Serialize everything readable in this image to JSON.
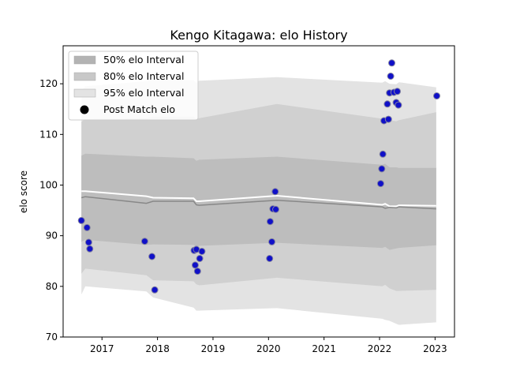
{
  "chart_data": {
    "type": "scatter",
    "title": "Kengo Kitagawa: elo History",
    "xlabel": "",
    "ylabel": "elo score",
    "xlim": [
      2016.3,
      2023.35
    ],
    "ylim": [
      70,
      127.5
    ],
    "x_ticks": [
      2017,
      2018,
      2019,
      2020,
      2021,
      2022,
      2023
    ],
    "y_ticks": [
      70,
      80,
      90,
      100,
      110,
      120
    ],
    "legend_position": "top-left",
    "grid": false,
    "legend": [
      {
        "label": "50% elo Interval",
        "kind": "band",
        "color": "#b3b3b3"
      },
      {
        "label": "80% elo Interval",
        "kind": "band",
        "color": "#c8c8c8"
      },
      {
        "label": "95% elo Interval",
        "kind": "band",
        "color": "#e3e3e3"
      },
      {
        "label": "Post Match elo",
        "kind": "marker",
        "color": "#000000"
      }
    ],
    "colors": {
      "band95": "#e3e3e3",
      "band80": "#d0d0d0",
      "band50": "#bdbdbd",
      "mean_line": "#ffffff",
      "median_line": "#888888",
      "marker_fill": "#1010c8",
      "marker_edge": "#8080a0"
    },
    "bands": {
      "x": [
        2016.63,
        2016.7,
        2017.8,
        2017.92,
        2018.65,
        2018.7,
        2018.75,
        2020.15,
        2022.05,
        2022.1,
        2022.18,
        2022.3,
        2022.35,
        2023.02
      ],
      "upper95": [
        118.5,
        119.5,
        120.5,
        120.7,
        120.7,
        120.2,
        120.6,
        121.3,
        120.2,
        120.5,
        120.0,
        119.9,
        120.3,
        119.3
      ],
      "upper80": [
        112.5,
        113.0,
        113.2,
        113.5,
        113.5,
        113.0,
        113.2,
        116.0,
        113.1,
        113.3,
        112.8,
        112.6,
        112.8,
        114.4
      ],
      "upper50": [
        105.8,
        106.2,
        105.6,
        105.6,
        105.3,
        104.8,
        105.0,
        105.6,
        104.0,
        104.2,
        103.5,
        103.5,
        103.4,
        103.4
      ],
      "lower50": [
        88.8,
        89.2,
        88.2,
        88.3,
        88.2,
        87.8,
        88.0,
        88.6,
        87.6,
        87.8,
        87.2,
        87.5,
        87.6,
        88.1
      ],
      "lower80": [
        82.5,
        83.5,
        82.2,
        81.2,
        81.0,
        80.4,
        80.2,
        81.7,
        80.0,
        80.3,
        79.6,
        79.1,
        79.1,
        79.3
      ],
      "lower95": [
        78.4,
        80.0,
        79.0,
        77.8,
        75.8,
        75.2,
        75.2,
        75.7,
        73.6,
        73.4,
        73.2,
        72.6,
        72.4,
        72.9
      ],
      "mean": [
        98.8,
        98.8,
        97.8,
        97.5,
        97.4,
        96.8,
        96.8,
        97.9,
        96.1,
        96.3,
        95.8,
        95.8,
        96.0,
        95.9
      ],
      "median": [
        97.5,
        97.7,
        96.4,
        96.8,
        96.8,
        96.1,
        96.0,
        97.0,
        95.7,
        95.4,
        95.6,
        95.5,
        95.7,
        95.3
      ]
    },
    "points": [
      {
        "x": 2016.63,
        "y": 93.0
      },
      {
        "x": 2016.73,
        "y": 91.6
      },
      {
        "x": 2016.76,
        "y": 88.7
      },
      {
        "x": 2016.78,
        "y": 87.4
      },
      {
        "x": 2017.77,
        "y": 88.9
      },
      {
        "x": 2017.9,
        "y": 85.9
      },
      {
        "x": 2017.95,
        "y": 79.3
      },
      {
        "x": 2018.66,
        "y": 87.1
      },
      {
        "x": 2018.68,
        "y": 84.2
      },
      {
        "x": 2018.7,
        "y": 87.3
      },
      {
        "x": 2018.72,
        "y": 83.0
      },
      {
        "x": 2018.76,
        "y": 85.5
      },
      {
        "x": 2018.8,
        "y": 86.9
      },
      {
        "x": 2020.03,
        "y": 92.8
      },
      {
        "x": 2020.02,
        "y": 85.5
      },
      {
        "x": 2020.06,
        "y": 88.8
      },
      {
        "x": 2020.08,
        "y": 95.3
      },
      {
        "x": 2020.12,
        "y": 98.7
      },
      {
        "x": 2020.13,
        "y": 95.2
      },
      {
        "x": 2022.02,
        "y": 100.3
      },
      {
        "x": 2022.04,
        "y": 103.2
      },
      {
        "x": 2022.06,
        "y": 106.1
      },
      {
        "x": 2022.08,
        "y": 112.7
      },
      {
        "x": 2022.14,
        "y": 116.0
      },
      {
        "x": 2022.16,
        "y": 113.0
      },
      {
        "x": 2022.18,
        "y": 118.2
      },
      {
        "x": 2022.2,
        "y": 121.5
      },
      {
        "x": 2022.22,
        "y": 124.1
      },
      {
        "x": 2022.26,
        "y": 118.3
      },
      {
        "x": 2022.3,
        "y": 116.3
      },
      {
        "x": 2022.32,
        "y": 118.5
      },
      {
        "x": 2022.34,
        "y": 115.8
      },
      {
        "x": 2023.03,
        "y": 117.6
      }
    ]
  }
}
